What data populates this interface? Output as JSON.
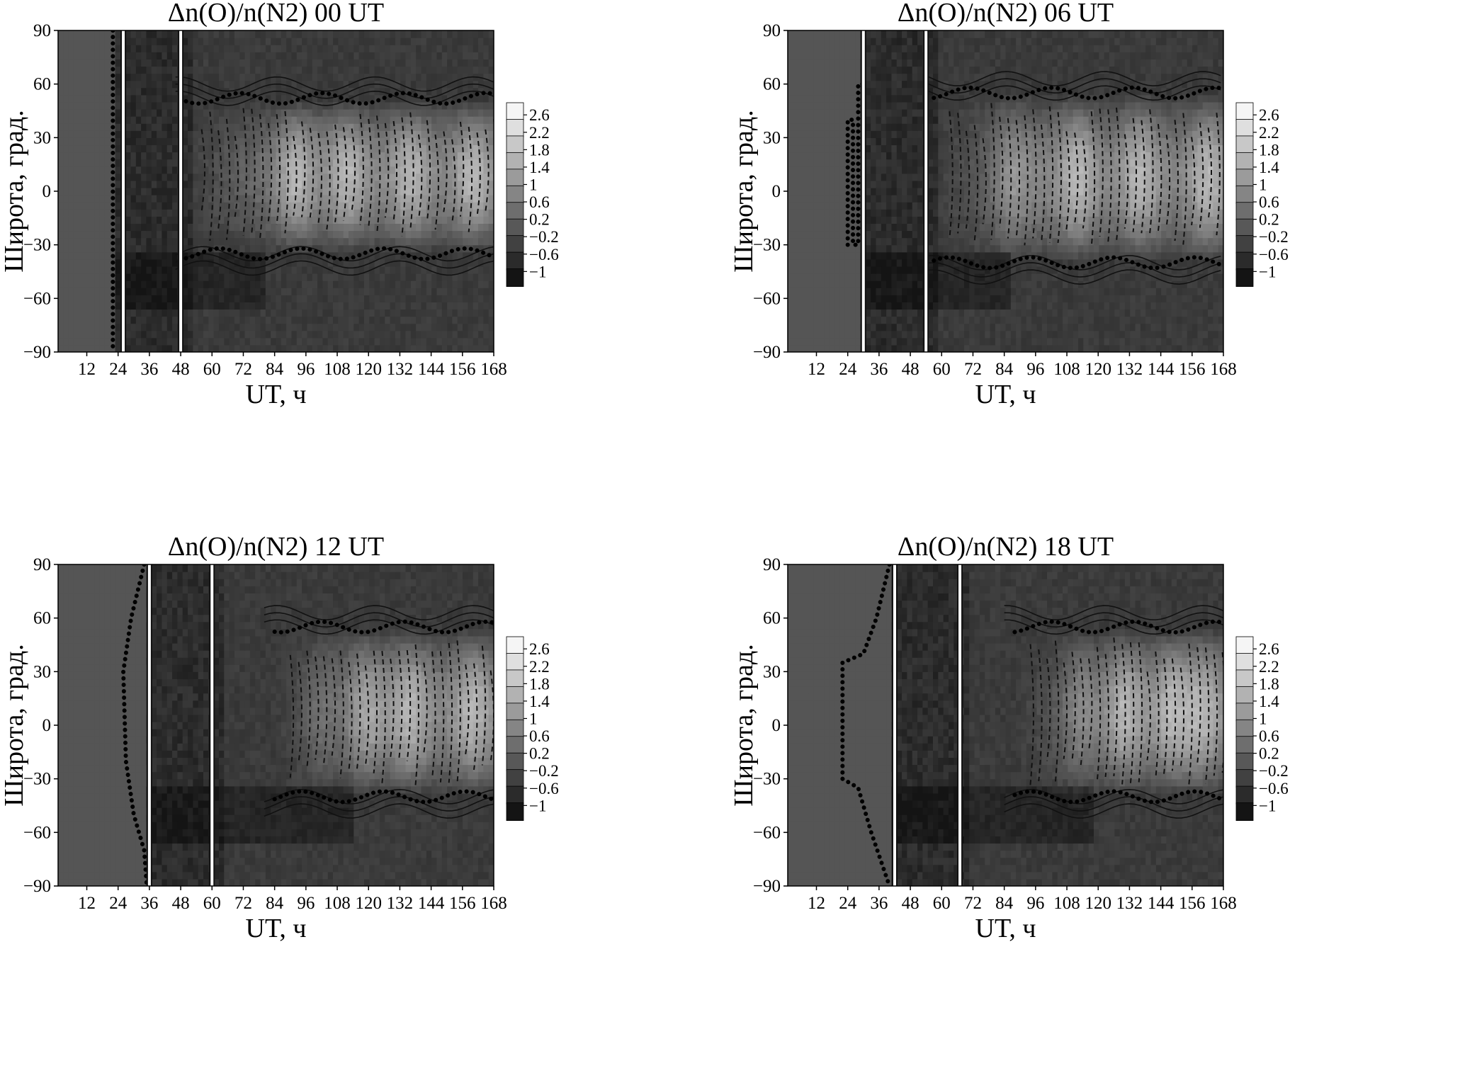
{
  "chart_data": [
    {
      "type": "heatmap",
      "title": "Δn(O)/n(N2) 00 UT",
      "xlabel": "UT, ч",
      "ylabel": "Широта, град.",
      "xlim": [
        1,
        168
      ],
      "ylim": [
        -90,
        90
      ],
      "xticks": [
        12,
        24,
        36,
        48,
        60,
        72,
        84,
        96,
        108,
        120,
        132,
        144,
        156,
        168
      ],
      "yticks": [
        90,
        60,
        30,
        0,
        -30,
        -60,
        -90
      ],
      "colorbar_ticks": [
        "2.6",
        "2.2",
        "1.8",
        "1.4",
        "1",
        "0.6",
        "0.2",
        "−0.2",
        "−0.6",
        "−1"
      ],
      "colorbar_range": [
        -1,
        2.8
      ],
      "tick_labels_x": [
        "12",
        "24",
        "36",
        "48",
        "60",
        "72",
        "84",
        "96",
        "108",
        "120",
        "132",
        "144",
        "156",
        "168"
      ],
      "tick_labels_y": [
        "90",
        "60",
        "30",
        "0",
        "−30",
        "−60",
        "−90"
      ],
      "no_data_until": 22,
      "markers_ut": [
        26,
        48
      ],
      "terminator_path": [
        [
          22,
          90
        ],
        [
          22,
          -90
        ]
      ],
      "disturbance_start": 50,
      "storm_events": [
        92,
        112,
        136,
        160
      ],
      "equator_band": [
        -35,
        52
      ]
    },
    {
      "type": "heatmap",
      "title": "Δn(O)/n(N2) 06 UT",
      "xlabel": "UT, ч",
      "ylabel": "Широта, град.",
      "xlim": [
        1,
        168
      ],
      "ylim": [
        -90,
        90
      ],
      "xticks": [
        12,
        24,
        36,
        48,
        60,
        72,
        84,
        96,
        108,
        120,
        132,
        144,
        156,
        168
      ],
      "yticks": [
        90,
        60,
        30,
        0,
        -30,
        -60,
        -90
      ],
      "colorbar_ticks": [
        "2.6",
        "2.2",
        "1.8",
        "1.4",
        "1",
        "0.6",
        "0.2",
        "−0.2",
        "−0.6",
        "−1"
      ],
      "colorbar_range": [
        -1,
        2.8
      ],
      "tick_labels_x": [
        "12",
        "24",
        "36",
        "48",
        "60",
        "72",
        "84",
        "96",
        "108",
        "120",
        "132",
        "144",
        "156",
        "168"
      ],
      "tick_labels_y": [
        "90",
        "60",
        "30",
        "0",
        "−30",
        "−60",
        "−90"
      ],
      "no_data_until": 28,
      "markers_ut": [
        30,
        54
      ],
      "terminator_path": [
        [
          24,
          -30
        ],
        [
          24,
          40
        ],
        [
          26,
          40
        ],
        [
          26,
          -30
        ],
        [
          28,
          -30
        ],
        [
          28,
          60
        ],
        [
          30,
          60
        ],
        [
          30,
          -90
        ]
      ],
      "disturbance_start": 57,
      "storm_events": [
        86,
        112,
        136,
        162
      ],
      "equator_band": [
        -40,
        55
      ]
    },
    {
      "type": "heatmap",
      "title": "Δn(O)/n(N2) 12 UT",
      "xlabel": "UT, ч",
      "ylabel": "Широта, град.",
      "xlim": [
        1,
        168
      ],
      "ylim": [
        -90,
        90
      ],
      "xticks": [
        12,
        24,
        36,
        48,
        60,
        72,
        84,
        96,
        108,
        120,
        132,
        144,
        156,
        168
      ],
      "yticks": [
        90,
        60,
        30,
        0,
        -30,
        -60,
        -90
      ],
      "colorbar_ticks": [
        "2.6",
        "2.2",
        "1.8",
        "1.4",
        "1",
        "0.6",
        "0.2",
        "−0.2",
        "−0.6",
        "−1"
      ],
      "colorbar_range": [
        -1,
        2.8
      ],
      "tick_labels_x": [
        "12",
        "24",
        "36",
        "48",
        "60",
        "72",
        "84",
        "96",
        "108",
        "120",
        "132",
        "144",
        "156",
        "168"
      ],
      "tick_labels_y": [
        "90",
        "60",
        "30",
        "0",
        "−30",
        "−60",
        "−90"
      ],
      "no_data_until": 34,
      "markers_ut": [
        36,
        60
      ],
      "terminator_path": [
        [
          34,
          90
        ],
        [
          29,
          60
        ],
        [
          26,
          30
        ],
        [
          27,
          -20
        ],
        [
          30,
          -50
        ],
        [
          34,
          -70
        ],
        [
          35,
          -90
        ]
      ],
      "disturbance_start": 84,
      "storm_events": [
        100,
        118,
        136,
        160
      ],
      "equator_band": [
        -40,
        55
      ]
    },
    {
      "type": "heatmap",
      "title": "Δn(O)/n(N2) 18 UT",
      "xlabel": "UT, ч",
      "ylabel": "Широта, град.",
      "xlim": [
        1,
        168
      ],
      "ylim": [
        -90,
        90
      ],
      "xticks": [
        12,
        24,
        36,
        48,
        60,
        72,
        84,
        96,
        108,
        120,
        132,
        144,
        156,
        168
      ],
      "yticks": [
        90,
        60,
        30,
        0,
        -30,
        -60,
        -90
      ],
      "colorbar_ticks": [
        "2.6",
        "2.2",
        "1.8",
        "1.4",
        "1",
        "0.6",
        "0.2",
        "−0.2",
        "−0.6",
        "−1"
      ],
      "colorbar_range": [
        -1,
        2.8
      ],
      "tick_labels_x": [
        "12",
        "24",
        "36",
        "48",
        "60",
        "72",
        "84",
        "96",
        "108",
        "120",
        "132",
        "144",
        "156",
        "168"
      ],
      "tick_labels_y": [
        "90",
        "60",
        "30",
        "0",
        "−30",
        "−60",
        "−90"
      ],
      "no_data_until": 40,
      "markers_ut": [
        42,
        67
      ],
      "terminator_path": [
        [
          40,
          90
        ],
        [
          35,
          60
        ],
        [
          30,
          40
        ],
        [
          22,
          35
        ],
        [
          22,
          -30
        ],
        [
          28,
          -35
        ],
        [
          33,
          -60
        ],
        [
          40,
          -90
        ]
      ],
      "disturbance_start": 88,
      "storm_events": [
        112,
        130,
        148,
        160
      ],
      "equator_band": [
        -40,
        55
      ]
    }
  ]
}
